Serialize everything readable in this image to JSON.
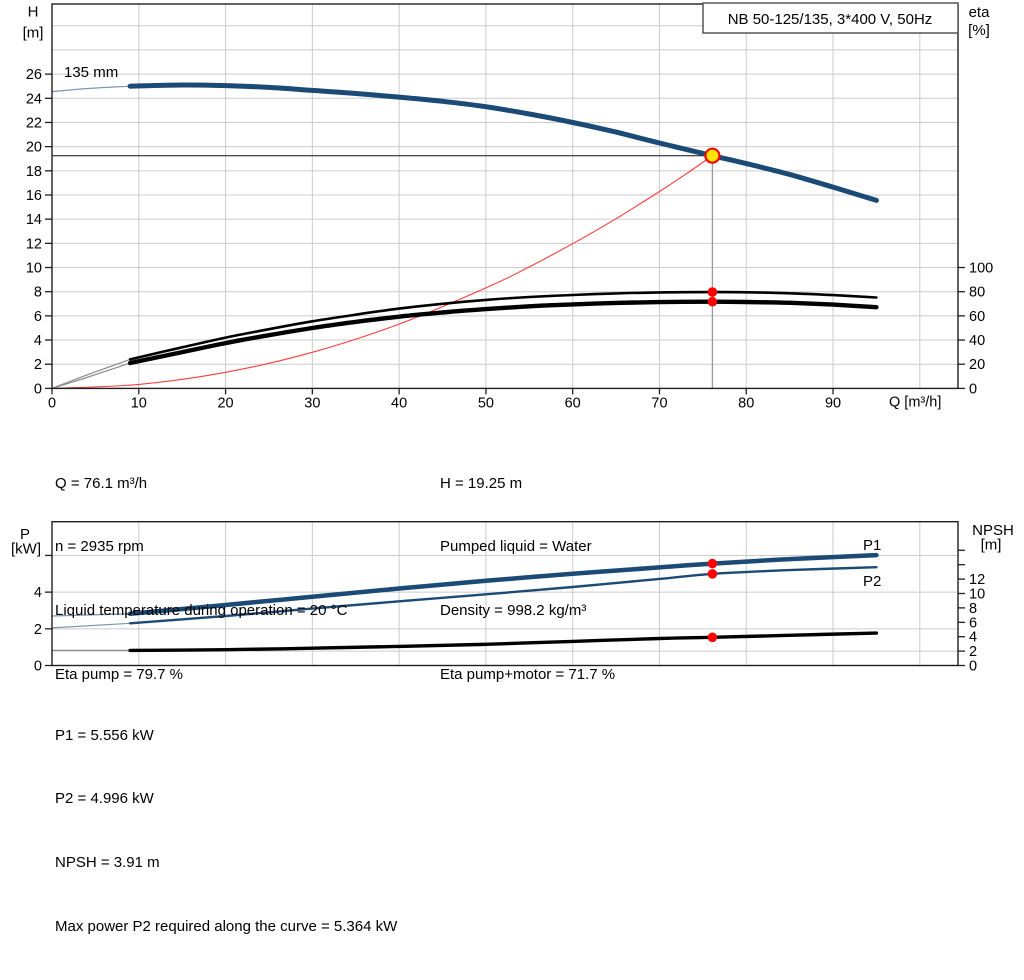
{
  "colors": {
    "curve_blue": "#1a4a75",
    "lead_blue": "#7d96b4",
    "lead_gray": "#8c8c8c",
    "black": "#000000",
    "system_red": "#ff3b3b",
    "marker_red": "#ff0000",
    "duty_yellow": "#ffe600",
    "grid": "#cbcbcb",
    "frame": "#1f1f1f",
    "guide_gray": "#9a9a9a",
    "title_border": "#4a4a4a"
  },
  "info_top": {
    "left": [
      "Q = 76.1 m³/h",
      "n = 2935 rpm",
      "Liquid temperature during operation = 20 °C",
      "Eta pump = 79.7 %"
    ],
    "right": [
      "H = 19.25 m",
      "Pumped liquid = Water",
      "Density = 998.2 kg/m³",
      "Eta pump+motor = 71.7 %"
    ]
  },
  "info_bottom": [
    "P1 = 5.556 kW",
    "P2 = 4.996 kW",
    "NPSH = 3.91 m",
    "Max power P2 required along the curve = 5.364 kW"
  ],
  "chart_data": [
    {
      "type": "line",
      "name": "qh-eta-chart",
      "title": "NB 50-125/135, 3*400 V, 50Hz",
      "impeller_label": "135 mm",
      "x_axis": {
        "label": "Q [m³/h]",
        "min": 0,
        "max": 104.4,
        "grid_step": 10,
        "ticks": [
          0,
          10,
          20,
          30,
          40,
          50,
          60,
          70,
          80,
          90
        ]
      },
      "y_left": {
        "label_lines": [
          "H",
          "[m]"
        ],
        "min": 0,
        "max": 31.8,
        "grid_step": 2,
        "ticks": [
          0,
          2,
          4,
          6,
          8,
          10,
          12,
          14,
          16,
          18,
          20,
          22,
          24,
          26
        ],
        "unlabeled_ticks": []
      },
      "y_right": {
        "label_lines": [
          "eta",
          "[%]"
        ],
        "min": 0,
        "max": 318,
        "ticks": [
          0,
          20,
          40,
          60,
          80,
          100
        ],
        "unlabeled_ticks": [],
        "gridlines": []
      },
      "duty_point": {
        "q": 76.1,
        "h": 19.25
      },
      "marker_points": [
        {
          "q": 76.1,
          "value": 79.7,
          "axis": "right"
        },
        {
          "q": 76.1,
          "value": 71.7,
          "axis": "right"
        }
      ],
      "series": [
        {
          "name": "system-curve",
          "axis": "left",
          "color": "#ff3b3b",
          "width": 1.1,
          "points": [
            [
              0,
              0
            ],
            [
              10,
              0.33
            ],
            [
              20,
              1.33
            ],
            [
              30,
              2.99
            ],
            [
              40,
              5.32
            ],
            [
              50,
              8.31
            ],
            [
              55,
              10.05
            ],
            [
              60,
              11.97
            ],
            [
              65,
              14.04
            ],
            [
              70,
              16.29
            ],
            [
              73,
              17.71
            ],
            [
              76.1,
              19.25
            ]
          ]
        },
        {
          "name": "eta-pump-curve",
          "axis": "right",
          "color": "#000000",
          "width": 2.6,
          "lead_thin_until": 9,
          "lead_color": "#8c8c8c",
          "points": [
            [
              0,
              0
            ],
            [
              4,
              11
            ],
            [
              9,
              24
            ],
            [
              15,
              34
            ],
            [
              20,
              42
            ],
            [
              25,
              49
            ],
            [
              30,
              55.5
            ],
            [
              35,
              61
            ],
            [
              40,
              66
            ],
            [
              45,
              70
            ],
            [
              50,
              73.2
            ],
            [
              55,
              75.6
            ],
            [
              60,
              77.3
            ],
            [
              65,
              78.6
            ],
            [
              70,
              79.4
            ],
            [
              76.1,
              79.7
            ],
            [
              80,
              79.5
            ],
            [
              85,
              78.7
            ],
            [
              90,
              77.2
            ],
            [
              95,
              75.2
            ]
          ]
        },
        {
          "name": "eta-pump-motor-curve",
          "axis": "right",
          "color": "#000000",
          "width": 4.4,
          "lead_thin_until": 9,
          "lead_color": "#8c8c8c",
          "points": [
            [
              0,
              0
            ],
            [
              4,
              9
            ],
            [
              9,
              21
            ],
            [
              15,
              30
            ],
            [
              20,
              37.5
            ],
            [
              25,
              44
            ],
            [
              30,
              50
            ],
            [
              35,
              55
            ],
            [
              40,
              59.3
            ],
            [
              45,
              62.8
            ],
            [
              50,
              65.6
            ],
            [
              55,
              67.9
            ],
            [
              60,
              69.5
            ],
            [
              65,
              70.7
            ],
            [
              70,
              71.4
            ],
            [
              76.1,
              71.7
            ],
            [
              80,
              71.5
            ],
            [
              85,
              70.8
            ],
            [
              90,
              69.3
            ],
            [
              95,
              67.2
            ]
          ]
        },
        {
          "name": "qh-curve",
          "axis": "left",
          "color": "#1a4a75",
          "width": 5,
          "lead_thin_until": 9,
          "lead_color": "#7d96b4",
          "points": [
            [
              0,
              24.55
            ],
            [
              4,
              24.8
            ],
            [
              9,
              25.0
            ],
            [
              15,
              25.1
            ],
            [
              20,
              25.05
            ],
            [
              25,
              24.9
            ],
            [
              30,
              24.65
            ],
            [
              35,
              24.4
            ],
            [
              40,
              24.1
            ],
            [
              45,
              23.75
            ],
            [
              50,
              23.3
            ],
            [
              55,
              22.7
            ],
            [
              60,
              22.0
            ],
            [
              65,
              21.2
            ],
            [
              70,
              20.3
            ],
            [
              76.1,
              19.25
            ],
            [
              80,
              18.6
            ],
            [
              85,
              17.7
            ],
            [
              90,
              16.65
            ],
            [
              95,
              15.55
            ]
          ]
        }
      ]
    },
    {
      "type": "line",
      "name": "power-npsh-chart",
      "x_axis": {
        "label": "",
        "min": 0,
        "max": 104.4,
        "grid_step": 10,
        "ticks": []
      },
      "y_left": {
        "label_lines": [
          "P",
          "[kW]"
        ],
        "min": 0,
        "max": 7.84,
        "grid_step": 2,
        "ticks": [
          0,
          2,
          4
        ],
        "unlabeled_ticks": [
          6
        ]
      },
      "y_right": {
        "label_lines": [
          "NPSH",
          "[m]"
        ],
        "min": 0,
        "max": 19.97,
        "ticks": [
          0,
          2,
          4,
          6,
          8,
          10,
          12
        ],
        "unlabeled_ticks": [
          14,
          16
        ],
        "gridlines": [
          2
        ]
      },
      "marker_points": [
        {
          "q": 76.1,
          "value": 5.556,
          "axis": "left"
        },
        {
          "q": 76.1,
          "value": 4.996,
          "axis": "left"
        },
        {
          "q": 76.1,
          "value": 3.91,
          "axis": "right"
        }
      ],
      "series": [
        {
          "name": "p1-curve",
          "label": "P1",
          "label_pos": [
            863,
            550
          ],
          "axis": "left",
          "color": "#1a4a75",
          "width": 4.5,
          "lead_thin_until": 9,
          "lead_color": "#7d96b4",
          "points": [
            [
              0,
              2.7
            ],
            [
              9,
              2.82
            ],
            [
              20,
              3.3
            ],
            [
              30,
              3.75
            ],
            [
              40,
              4.2
            ],
            [
              50,
              4.62
            ],
            [
              60,
              5.0
            ],
            [
              70,
              5.35
            ],
            [
              76.1,
              5.556
            ],
            [
              85,
              5.8
            ],
            [
              95,
              6.02
            ]
          ]
        },
        {
          "name": "p2-curve",
          "label": "P2",
          "label_pos": [
            863,
            586
          ],
          "axis": "left",
          "color": "#1a4a75",
          "width": 2.4,
          "lead_thin_until": 9,
          "lead_color": "#7d96b4",
          "points": [
            [
              0,
              2.05
            ],
            [
              9,
              2.3
            ],
            [
              20,
              2.7
            ],
            [
              30,
              3.1
            ],
            [
              40,
              3.5
            ],
            [
              50,
              3.88
            ],
            [
              60,
              4.28
            ],
            [
              70,
              4.72
            ],
            [
              76.1,
              4.996
            ],
            [
              85,
              5.2
            ],
            [
              95,
              5.36
            ]
          ]
        },
        {
          "name": "npsh-curve",
          "axis": "right",
          "color": "#000000",
          "width": 3.4,
          "lead_thin_until": 9,
          "lead_color": "#8c8c8c",
          "points": [
            [
              0,
              2.1
            ],
            [
              9,
              2.1
            ],
            [
              20,
              2.2
            ],
            [
              30,
              2.4
            ],
            [
              40,
              2.65
            ],
            [
              50,
              2.95
            ],
            [
              60,
              3.35
            ],
            [
              70,
              3.75
            ],
            [
              76.1,
              3.91
            ],
            [
              85,
              4.2
            ],
            [
              95,
              4.5
            ]
          ]
        }
      ]
    }
  ]
}
